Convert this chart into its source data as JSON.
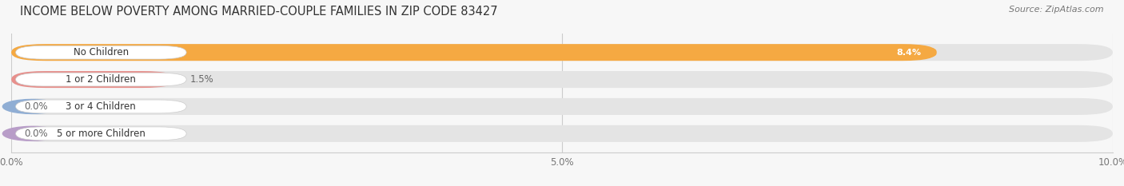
{
  "title": "INCOME BELOW POVERTY AMONG MARRIED-COUPLE FAMILIES IN ZIP CODE 83427",
  "source": "Source: ZipAtlas.com",
  "categories": [
    "No Children",
    "1 or 2 Children",
    "3 or 4 Children",
    "5 or more Children"
  ],
  "values": [
    8.4,
    1.5,
    0.0,
    0.0
  ],
  "bar_colors": [
    "#F5A942",
    "#E8908C",
    "#90AED4",
    "#B89DC8"
  ],
  "xlim": [
    0,
    10.0
  ],
  "xticks": [
    0.0,
    5.0,
    10.0
  ],
  "xticklabels": [
    "0.0%",
    "5.0%",
    "10.0%"
  ],
  "title_fontsize": 10.5,
  "bar_height": 0.62,
  "background_color": "#f7f7f7",
  "bar_bg_color": "#e4e4e4",
  "value_labels": [
    "8.4%",
    "1.5%",
    "0.0%",
    "0.0%"
  ],
  "value_label_inside": [
    true,
    false,
    false,
    false
  ]
}
